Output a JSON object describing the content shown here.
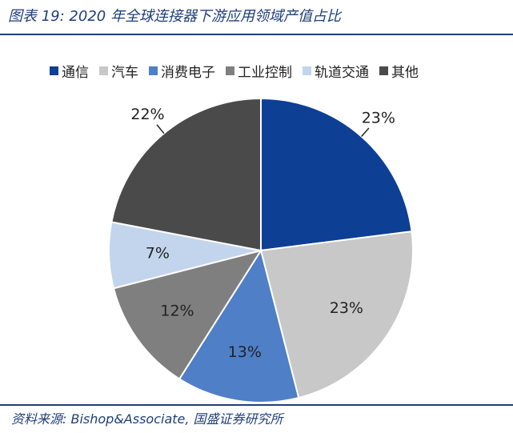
{
  "figure": {
    "title": "图表 19:  2020 年全球连接器下游应用领域产值占比",
    "source": "资料来源:  Bishop&Associate,  国盛证券研究所"
  },
  "chart_data": {
    "type": "pie",
    "categories": [
      "通信",
      "汽车",
      "消费电子",
      "工业控制",
      "轨道交通",
      "其他"
    ],
    "values": [
      23,
      23,
      13,
      12,
      7,
      22
    ],
    "labels": [
      "23%",
      "23%",
      "13%",
      "12%",
      "7%",
      "22%"
    ],
    "colors": [
      "#0d3f94",
      "#c8c8c8",
      "#4f7fc6",
      "#7f7f7f",
      "#c3d5ec",
      "#4a4a4a"
    ],
    "legend_position": "top",
    "start": "12 o'clock",
    "direction": "clockwise"
  }
}
